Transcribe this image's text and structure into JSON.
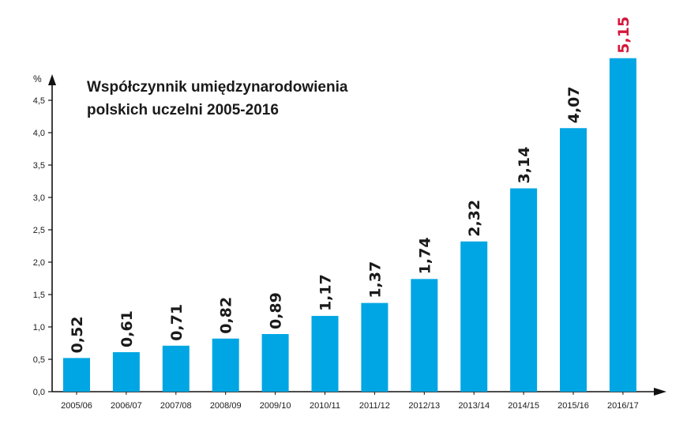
{
  "chart_data": {
    "type": "bar",
    "title_lines": [
      "Współczynnik umiędzynarodowienia",
      "polskich uczelni 2005-2016"
    ],
    "y_unit": "%",
    "categories": [
      "2005/06",
      "2006/07",
      "2007/08",
      "2008/09",
      "2009/10",
      "2010/11",
      "2011/12",
      "2012/13",
      "2013/14",
      "2014/15",
      "2015/16",
      "2016/17"
    ],
    "values": [
      0.52,
      0.61,
      0.71,
      0.82,
      0.89,
      1.17,
      1.37,
      1.74,
      2.32,
      3.14,
      4.07,
      5.15
    ],
    "value_labels": [
      "0,52",
      "0,61",
      "0,71",
      "0,82",
      "0,89",
      "1,17",
      "1,37",
      "1,74",
      "2,32",
      "3,14",
      "4,07",
      "5,15"
    ],
    "y_ticks": [
      "0,0",
      "0,5",
      "1,0",
      "1,5",
      "2,0",
      "2,5",
      "3,0",
      "3,5",
      "4,0",
      "4,5"
    ],
    "y_tick_values": [
      0,
      0.5,
      1.0,
      1.5,
      2.0,
      2.5,
      3.0,
      3.5,
      4.0,
      4.5
    ],
    "ylim": [
      0,
      5
    ],
    "grid": false,
    "bar_color": "#00a6e3",
    "label_color": "#1a1a1a",
    "highlight_index": 11,
    "highlight_label_color": "#d6173a"
  }
}
